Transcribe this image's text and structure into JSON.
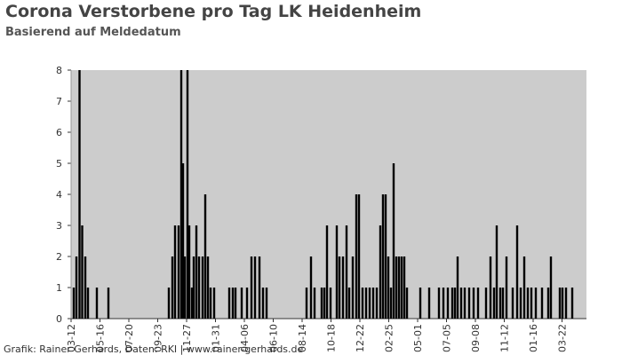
{
  "chart_data": {
    "type": "bar",
    "title": "Corona Verstorbene pro Tag LK Heidenheim",
    "subtitle": "Basierend auf Meldedatum",
    "footer": "Grafik: Rainer Gerhards, Daten: RKI | www.rainer-gerhards.de",
    "color": "#000000",
    "background": "#cccccc",
    "x": [
      6,
      12,
      19,
      25,
      32,
      38,
      58,
      84,
      220,
      228,
      234,
      242,
      248,
      252,
      256,
      262,
      266,
      272,
      276,
      282,
      288,
      296,
      302,
      308,
      314,
      322,
      356,
      364,
      370,
      384,
      396,
      406,
      414,
      424,
      432,
      440,
      530,
      540,
      548,
      564,
      570,
      576,
      584,
      598,
      604,
      612,
      620,
      626,
      634,
      642,
      648,
      656,
      664,
      672,
      680,
      688,
      696,
      702,
      708,
      714,
      720,
      726,
      732,
      738,
      744,
      750,
      756,
      786,
      806,
      828,
      838,
      848,
      858,
      864,
      870,
      878,
      886,
      896,
      906,
      916,
      934,
      944,
      952,
      958,
      966,
      972,
      980,
      994,
      1004,
      1012,
      1020,
      1028,
      1036,
      1046,
      1060,
      1074,
      1080,
      1100,
      1106,
      1114,
      1128
    ],
    "values": [
      1,
      2,
      8,
      3,
      2,
      1,
      1,
      1,
      1,
      2,
      3,
      3,
      8,
      5,
      2,
      8,
      3,
      1,
      2,
      3,
      2,
      2,
      4,
      2,
      1,
      1,
      1,
      1,
      1,
      1,
      1,
      2,
      2,
      2,
      1,
      1,
      1,
      2,
      1,
      1,
      1,
      3,
      1,
      3,
      2,
      2,
      3,
      1,
      2,
      4,
      4,
      1,
      1,
      1,
      1,
      1,
      3,
      4,
      4,
      2,
      1,
      5,
      2,
      2,
      2,
      2,
      1,
      1,
      1,
      1,
      1,
      1,
      1,
      1,
      2,
      1,
      1,
      1,
      1,
      1,
      1,
      2,
      1,
      3,
      1,
      1,
      2,
      1,
      3,
      1,
      2,
      1,
      1,
      1,
      1,
      1,
      2,
      1,
      1,
      1,
      1
    ],
    "xlim": [
      0,
      1160
    ],
    "xticks": [
      {
        "value": 0,
        "label": "03-12"
      },
      {
        "value": 65,
        "label": "05-16"
      },
      {
        "value": 130,
        "label": "07-20"
      },
      {
        "value": 195,
        "label": "09-23"
      },
      {
        "value": 260,
        "label": "11-27"
      },
      {
        "value": 325,
        "label": "01-31"
      },
      {
        "value": 390,
        "label": "04-06"
      },
      {
        "value": 455,
        "label": "06-10"
      },
      {
        "value": 520,
        "label": "08-14"
      },
      {
        "value": 585,
        "label": "10-18"
      },
      {
        "value": 650,
        "label": "12-22"
      },
      {
        "value": 715,
        "label": "02-25"
      },
      {
        "value": 780,
        "label": "05-01"
      },
      {
        "value": 845,
        "label": "07-05"
      },
      {
        "value": 910,
        "label": "09-08"
      },
      {
        "value": 975,
        "label": "11-12"
      },
      {
        "value": 1040,
        "label": "01-16"
      },
      {
        "value": 1105,
        "label": "03-22"
      }
    ],
    "ylim": [
      0,
      8
    ],
    "yticks": [
      0,
      1,
      2,
      3,
      4,
      5,
      6,
      7,
      8
    ]
  }
}
